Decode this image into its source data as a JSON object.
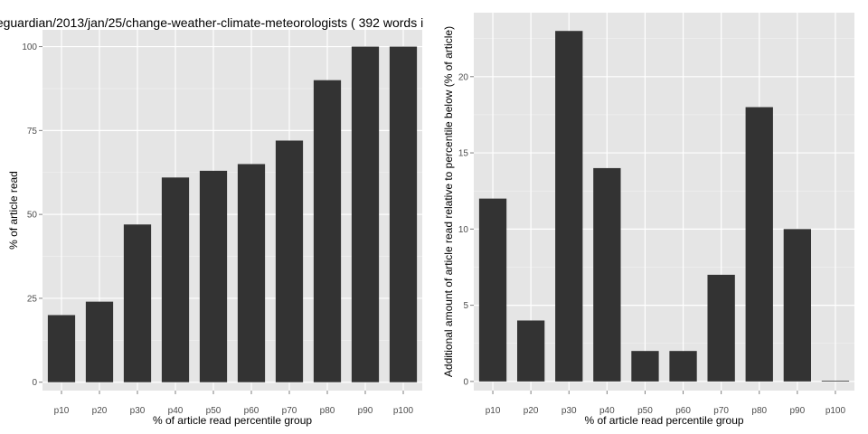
{
  "chart_data": [
    {
      "type": "bar",
      "title": "eguardian/2013/jan/25/change-weather-climate-meteorologists ( 392 words i",
      "xlabel": "% of article read percentile group",
      "ylabel": "% of article read",
      "categories": [
        "p10",
        "p20",
        "p30",
        "p40",
        "p50",
        "p60",
        "p70",
        "p80",
        "p90",
        "p100"
      ],
      "values": [
        20,
        24,
        47,
        61,
        63,
        65,
        72,
        90,
        100,
        100
      ],
      "ylim": [
        -2.5,
        105
      ],
      "yticks": [
        0,
        25,
        50,
        75,
        100
      ],
      "grid": true,
      "bar_color": "#333333",
      "panel_background": "#e5e5e5",
      "grid_color": "#ffffff"
    },
    {
      "type": "bar",
      "title": "",
      "xlabel": "% of article read percentile group",
      "ylabel": "Additional amount of article read relative to percentile below (% of article)",
      "categories": [
        "p10",
        "p20",
        "p30",
        "p40",
        "p50",
        "p60",
        "p70",
        "p80",
        "p90",
        "p100"
      ],
      "values": [
        12,
        4,
        23,
        14,
        2,
        2,
        7,
        18,
        10,
        0
      ],
      "ylim": [
        -0.6,
        24.2
      ],
      "yticks": [
        0,
        5,
        10,
        15,
        20
      ],
      "grid": true,
      "bar_color": "#333333",
      "panel_background": "#e5e5e5",
      "grid_color": "#ffffff"
    }
  ]
}
